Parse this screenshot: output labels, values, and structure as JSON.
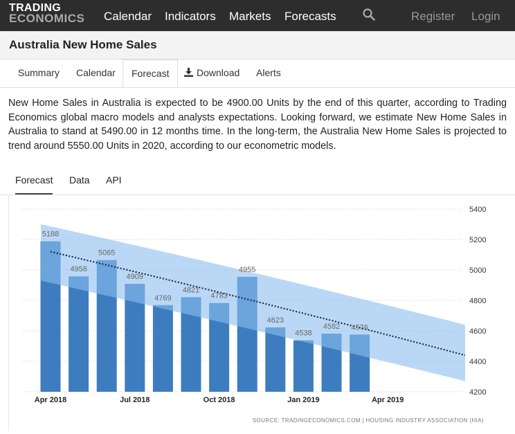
{
  "logo": {
    "line1": "TRADING",
    "line2": "ECONOMICS"
  },
  "nav": {
    "items": [
      "Calendar",
      "Indicators",
      "Markets",
      "Forecasts"
    ],
    "register": "Register",
    "login": "Login"
  },
  "page": {
    "title": "Australia New Home Sales"
  },
  "tabs": [
    "Summary",
    "Calendar",
    "Forecast",
    "Download",
    "Alerts"
  ],
  "active_tab": "Forecast",
  "description": "New Home Sales in Australia is expected to be 4900.00 Units by the end of this quarter, according to Trading Economics global macro models and analysts expectations. Looking forward, we estimate New Home Sales in Australia to stand at 5490.00 in 12 months time. In the long-term, the Australia New Home Sales is projected to trend around 5550.00 Units in 2020, according to our econometric models.",
  "subtabs": [
    "Forecast",
    "Data",
    "API"
  ],
  "chart_data": {
    "type": "bar",
    "categories": [
      "2018-04",
      "2018-05",
      "2018-06",
      "2018-07",
      "2018-08",
      "2018-09",
      "2018-10",
      "2018-11",
      "2018-12",
      "2019-01",
      "2019-02",
      "2019-03"
    ],
    "values": [
      5188,
      4958,
      5065,
      4909,
      4769,
      4821,
      4783,
      4955,
      4623,
      4538,
      4582,
      4576
    ],
    "data_labels": [
      "5188",
      "4958",
      "5065",
      "4909",
      "4769",
      "4821",
      "4783",
      "4955",
      "4623",
      "4538",
      "4582",
      "4576"
    ],
    "x_ticks": [
      {
        "label": "Apr 2018",
        "at": "2018-04"
      },
      {
        "label": "Jul 2018",
        "at": "2018-07"
      },
      {
        "label": "Oct 2018",
        "at": "2018-10"
      },
      {
        "label": "Jan 2019",
        "at": "2019-01"
      },
      {
        "label": "Apr 2019",
        "at": "2019-04"
      }
    ],
    "y_ticks": [
      4200,
      4400,
      4600,
      4800,
      5000,
      5200,
      5400
    ],
    "ylim": [
      4200,
      5400
    ],
    "forecast_trend": {
      "x": [
        "2018-04",
        "2019-07"
      ],
      "y": [
        5120,
        4440
      ],
      "band_upper": [
        5300,
        4640
      ],
      "band_lower": [
        4930,
        4270
      ]
    },
    "axis_position": "right",
    "grid": true,
    "source": "SOURCE: TRADINGECONOMICS.COM | HOUSING INDUSTRY ASSOCIATION (HIA)",
    "colors": {
      "bar": "#3d7dbf",
      "band": "#8cbef0",
      "trend": "#1a2a44",
      "grid": "#cccccc"
    }
  }
}
